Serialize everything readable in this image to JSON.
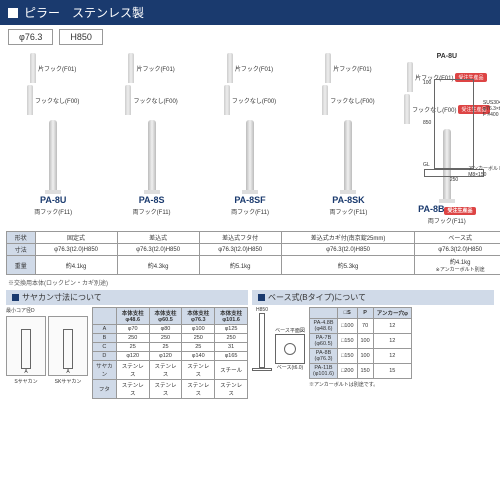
{
  "header": {
    "title": "ピラー　ステンレス製"
  },
  "specs": {
    "diameter": "φ76.3",
    "height": "H850"
  },
  "products": [
    {
      "model": "PA-8U",
      "hook": "両フック(F11)",
      "shape": "固定式",
      "dim": "φ76.3(t2.0)H850",
      "weight": "約4.1kg"
    },
    {
      "model": "PA-8S",
      "hook": "両フック(F11)",
      "shape": "差込式",
      "dim": "φ76.3(t2.0)H850",
      "weight": "約4.3kg"
    },
    {
      "model": "PA-8SF",
      "hook": "両フック(F11)",
      "shape": "差込式フタ付",
      "dim": "φ76.3(t2.0)H850",
      "weight": "約5.1kg"
    },
    {
      "model": "PA-8SK",
      "hook": "両フック(F11)",
      "shape": "差込式カギ付(南京錠25mm)",
      "dim": "φ76.3(t2.0)H850",
      "weight": "約5.3kg"
    },
    {
      "model": "PA-8B",
      "hook": "両フック(F11)",
      "shape": "ベース式",
      "dim": "φ76.3(t2.0)H850",
      "weight": "約4.1kg",
      "badge": "受注生産品"
    }
  ],
  "variantLabels": {
    "kata": "片フック(F01)",
    "nashi": "フックなし(F00)"
  },
  "variantBadge": "受注生産品",
  "topModel": "PA-8U",
  "rowLabels": {
    "shape": "形状",
    "dim": "寸法",
    "weight": "重量"
  },
  "baseNote": "※アンカーボルト別途",
  "replaceNote": "※交換用本体(ロックピン・カギ別途)",
  "sayakan": {
    "title": "サヤカン寸法について",
    "coreLabel": "最小コア径D",
    "headers": [
      "",
      "本体支柱\nφ48.6",
      "本体支柱\nφ60.5",
      "本体支柱\nφ76.3",
      "本体支柱\nφ101.6"
    ],
    "rows": [
      [
        "A",
        "φ70",
        "φ80",
        "φ100",
        "φ125"
      ],
      [
        "B",
        "250",
        "250",
        "250",
        "250"
      ],
      [
        "C",
        "25",
        "25",
        "25",
        "31"
      ],
      [
        "D",
        "φ120",
        "φ120",
        "φ140",
        "φ165"
      ],
      [
        "サヤカン",
        "ステンレス",
        "ステンレス",
        "ステンレス",
        "スチール"
      ],
      [
        "フタ",
        "ステンレス",
        "ステンレス",
        "ステンレス",
        "ステンレス"
      ]
    ],
    "diagLabels": {
      "s": "Sサヤカン",
      "sk": "SKサヤカン"
    }
  },
  "base": {
    "title": "ベース式(Bタイプ)について",
    "planLabel": "ベース平面図",
    "heightLabel": "H850",
    "baseDim": "ベース(t6.0)",
    "headers": [
      "",
      "□S",
      "P",
      "アンカー穴φ"
    ],
    "rows": [
      [
        "PA-4.8B\n(φ48.6)",
        "□100",
        "70",
        "12"
      ],
      [
        "PA-7B\n(φ60.5)",
        "□150",
        "100",
        "12"
      ],
      [
        "PA-8B\n(φ76.3)",
        "□150",
        "100",
        "12"
      ],
      [
        "PA-11B\n(φ101.6)",
        "□200",
        "150",
        "15"
      ]
    ],
    "note": "※アンカーボルトは別途です。"
  },
  "techDraw": {
    "material": "SUS304\nφ76.3×t2\nF #400",
    "anchor": "アンカーボルト\nM8×150",
    "dims": {
      "h1": "100",
      "h2": "850",
      "gl": "GL",
      "w": "250",
      "b": "150"
    }
  },
  "colors": {
    "navy": "#1a3a6e",
    "headerBg": "#d0dae8",
    "badge": "#d44"
  }
}
